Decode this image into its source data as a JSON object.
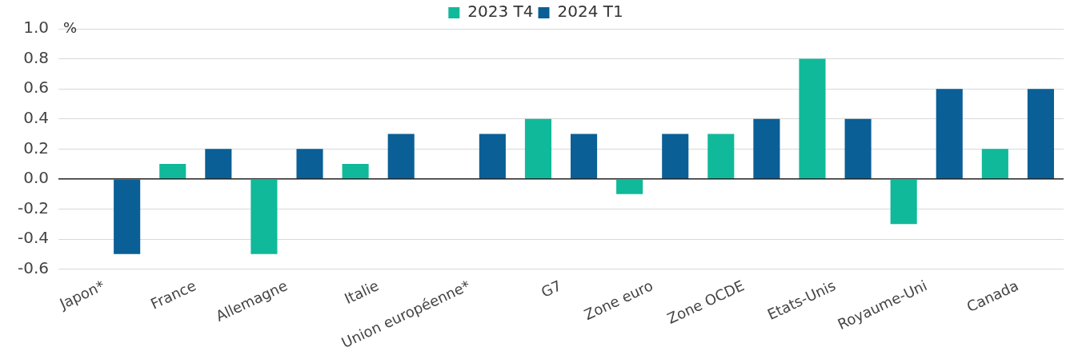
{
  "chart_data": {
    "type": "bar",
    "ylabel": "%",
    "categories": [
      "Japon*",
      "France",
      "Allemagne",
      "Italie",
      "Union européenne*",
      "G7",
      "Zone euro",
      "Zone OCDE",
      "Etats-Unis",
      "Royaume-Uni",
      "Canada"
    ],
    "series": [
      {
        "name": "2023 T4",
        "color": "#10b99a",
        "values": [
          0,
          0.1,
          -0.5,
          0.1,
          0,
          0.4,
          -0.1,
          0.3,
          0.8,
          -0.3,
          0.2
        ]
      },
      {
        "name": "2024 T1",
        "color": "#0a5f96",
        "values": [
          -0.5,
          0.2,
          0.2,
          0.3,
          0.3,
          0.3,
          0.3,
          0.4,
          0.4,
          0.6,
          0.6
        ]
      }
    ],
    "ylim": [
      -0.6,
      1.0
    ],
    "yticks": [
      -0.6,
      -0.4,
      -0.2,
      {
        "value": 0,
        "label": "0.0"
      },
      0.2,
      0.4,
      0.6,
      0.8,
      {
        "value": 1,
        "label": "1.0"
      }
    ],
    "grid": "y",
    "legend": "top"
  }
}
